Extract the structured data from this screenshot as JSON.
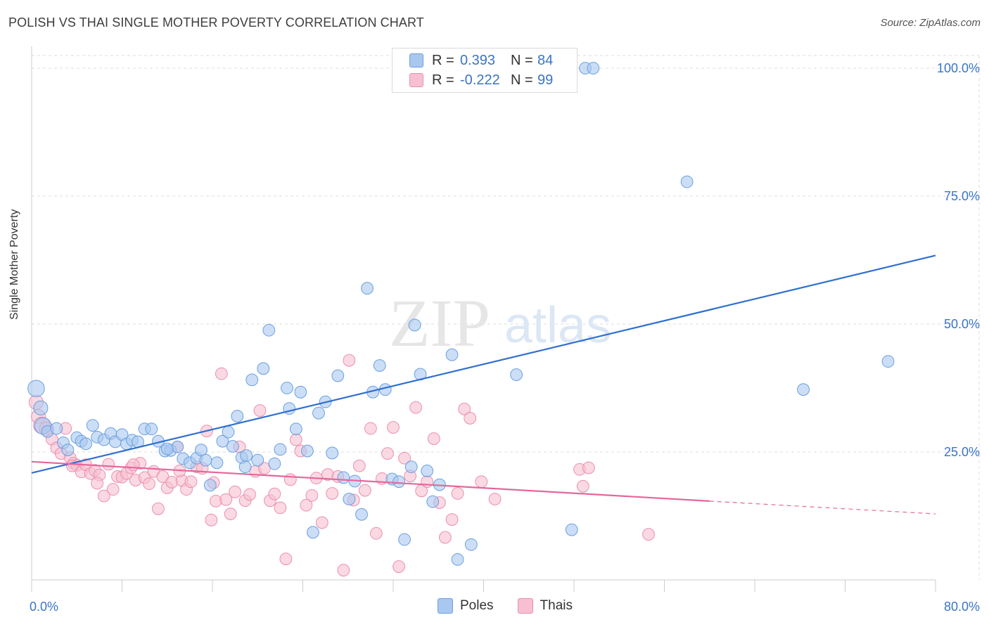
{
  "title": "POLISH VS THAI SINGLE MOTHER POVERTY CORRELATION CHART",
  "source": "Source: ZipAtlas.com",
  "watermark": {
    "zip": "ZIP",
    "atlas": "atlas"
  },
  "colors": {
    "poles_fill": "#a9c8f0",
    "poles_stroke": "#6b9fe0",
    "poles_line": "#2f6fcf",
    "thais_fill": "#f7bfd1",
    "thais_stroke": "#ec8fae",
    "thais_line": "#e5679a",
    "axis_text": "#3a74c8",
    "grid": "#dddddd"
  },
  "legend_top": {
    "rows": [
      {
        "key": "R =",
        "r": "0.393",
        "nkey": "N =",
        "n": "84"
      },
      {
        "key": "R =",
        "r": "-0.222",
        "nkey": "N =",
        "n": "99"
      }
    ]
  },
  "legend_bottom": [
    "Poles",
    "Thais"
  ],
  "chart_data": {
    "type": "scatter",
    "title": "POLISH VS THAI SINGLE MOTHER POVERTY CORRELATION CHART",
    "xlabel": "",
    "ylabel": "Single Mother Poverty",
    "xlim": [
      0,
      80
    ],
    "ylim": [
      0,
      100
    ],
    "x_tick_labels": [
      "0.0%",
      "80.0%"
    ],
    "y_tick_labels": [
      "25.0%",
      "50.0%",
      "75.0%",
      "100.0%"
    ],
    "y_ticks": [
      25,
      50,
      75,
      100
    ],
    "grid": true,
    "legend_position": "bottom-center",
    "series": [
      {
        "name": "Poles",
        "trend": {
          "x": [
            0,
            80
          ],
          "y": [
            20.9,
            63.4
          ],
          "style": "solid"
        },
        "points": [
          [
            0.4,
            37.4,
            14
          ],
          [
            0.8,
            33.6,
            12
          ],
          [
            1.0,
            30.1,
            14
          ],
          [
            1.4,
            29.0,
            10
          ],
          [
            2.2,
            29.6,
            10
          ],
          [
            2.8,
            26.8,
            10
          ],
          [
            3.2,
            25.4,
            10
          ],
          [
            4.0,
            27.8,
            10
          ],
          [
            4.4,
            27.1,
            10
          ],
          [
            4.8,
            26.6,
            10
          ],
          [
            5.4,
            30.2,
            10
          ],
          [
            5.8,
            27.9,
            10
          ],
          [
            6.4,
            27.4,
            10
          ],
          [
            7.0,
            28.6,
            10
          ],
          [
            7.4,
            27.0,
            10
          ],
          [
            8.0,
            28.4,
            10
          ],
          [
            8.4,
            26.6,
            10
          ],
          [
            8.9,
            27.3,
            10
          ],
          [
            9.4,
            27.0,
            10
          ],
          [
            10.0,
            29.5,
            10
          ],
          [
            10.6,
            29.5,
            10
          ],
          [
            11.2,
            27.1,
            10
          ],
          [
            11.8,
            25.2,
            10
          ],
          [
            12.3,
            25.3,
            10
          ],
          [
            12.9,
            26.0,
            10
          ],
          [
            13.4,
            23.7,
            10
          ],
          [
            14.0,
            22.9,
            10
          ],
          [
            14.6,
            23.8,
            10
          ],
          [
            15.0,
            25.4,
            10
          ],
          [
            15.4,
            23.4,
            10
          ],
          [
            15.8,
            18.5,
            10
          ],
          [
            16.4,
            22.9,
            10
          ],
          [
            16.9,
            27.1,
            10
          ],
          [
            17.4,
            28.9,
            10
          ],
          [
            17.8,
            26.1,
            10
          ],
          [
            18.2,
            32.0,
            10
          ],
          [
            18.6,
            23.9,
            10
          ],
          [
            19.0,
            24.3,
            10
          ],
          [
            19.5,
            39.1,
            10
          ],
          [
            20.0,
            23.4,
            10
          ],
          [
            20.5,
            41.3,
            10
          ],
          [
            21.0,
            48.8,
            10
          ],
          [
            21.5,
            22.7,
            10
          ],
          [
            22.0,
            25.5,
            10
          ],
          [
            22.8,
            33.5,
            10
          ],
          [
            23.4,
            29.5,
            10
          ],
          [
            23.8,
            36.7,
            10
          ],
          [
            24.4,
            25.2,
            10
          ],
          [
            24.9,
            9.3,
            10
          ],
          [
            25.4,
            32.6,
            10
          ],
          [
            26.0,
            34.8,
            10
          ],
          [
            26.6,
            24.8,
            10
          ],
          [
            27.1,
            39.9,
            10
          ],
          [
            27.6,
            20.0,
            10
          ],
          [
            28.1,
            15.8,
            10
          ],
          [
            28.6,
            19.3,
            10
          ],
          [
            29.2,
            12.8,
            10
          ],
          [
            29.7,
            57.0,
            10
          ],
          [
            30.2,
            36.7,
            10
          ],
          [
            30.8,
            41.9,
            10
          ],
          [
            31.3,
            37.2,
            10
          ],
          [
            31.9,
            19.7,
            10
          ],
          [
            32.5,
            19.2,
            10
          ],
          [
            33.0,
            7.9,
            10
          ],
          [
            33.6,
            22.1,
            10
          ],
          [
            33.9,
            49.8,
            10
          ],
          [
            34.4,
            40.2,
            10
          ],
          [
            35.0,
            21.3,
            10
          ],
          [
            35.5,
            15.3,
            10
          ],
          [
            37.2,
            44.0,
            10
          ],
          [
            37.7,
            4.0,
            10
          ],
          [
            38.9,
            6.9,
            10
          ],
          [
            40.0,
            99.8,
            10
          ],
          [
            42.9,
            40.1,
            10
          ],
          [
            47.8,
            9.8,
            10
          ],
          [
            49.0,
            100.0,
            10
          ],
          [
            49.7,
            100.0,
            10
          ],
          [
            58.0,
            77.8,
            10
          ],
          [
            68.3,
            37.2,
            10
          ],
          [
            75.8,
            42.7,
            10
          ],
          [
            22.6,
            37.5,
            10
          ],
          [
            18.9,
            22.1,
            10
          ],
          [
            36.1,
            18.6,
            10
          ],
          [
            12.0,
            25.6,
            10
          ]
        ]
      },
      {
        "name": "Thais",
        "trend": {
          "x": [
            0,
            60,
            80
          ],
          "y": [
            23.1,
            15.4,
            12.9
          ],
          "style": "solid-then-dashed",
          "solid_until": 60
        },
        "points": [
          [
            0.4,
            34.7,
            12
          ],
          [
            0.6,
            31.9,
            12
          ],
          [
            0.9,
            30.2,
            14
          ],
          [
            1.3,
            29.5,
            12
          ],
          [
            1.8,
            27.5,
            10
          ],
          [
            2.2,
            25.8,
            10
          ],
          [
            2.6,
            24.7,
            10
          ],
          [
            3.0,
            29.6,
            10
          ],
          [
            3.4,
            23.9,
            10
          ],
          [
            3.7,
            22.8,
            10
          ],
          [
            4.0,
            22.4,
            10
          ],
          [
            4.4,
            21.1,
            10
          ],
          [
            4.8,
            22.5,
            10
          ],
          [
            5.2,
            20.8,
            10
          ],
          [
            5.6,
            21.4,
            10
          ],
          [
            6.0,
            20.5,
            10
          ],
          [
            6.4,
            16.4,
            10
          ],
          [
            6.8,
            22.6,
            10
          ],
          [
            7.2,
            17.7,
            10
          ],
          [
            7.6,
            20.2,
            10
          ],
          [
            8.0,
            20.1,
            10
          ],
          [
            8.4,
            20.8,
            10
          ],
          [
            8.8,
            21.9,
            10
          ],
          [
            9.2,
            19.5,
            10
          ],
          [
            9.6,
            22.8,
            10
          ],
          [
            10.0,
            20.0,
            10
          ],
          [
            10.4,
            18.8,
            10
          ],
          [
            10.8,
            21.2,
            10
          ],
          [
            11.2,
            13.9,
            10
          ],
          [
            11.6,
            20.2,
            10
          ],
          [
            12.0,
            18.0,
            10
          ],
          [
            12.4,
            19.1,
            10
          ],
          [
            12.9,
            26.0,
            10
          ],
          [
            13.3,
            19.4,
            10
          ],
          [
            13.7,
            17.7,
            10
          ],
          [
            14.1,
            19.2,
            10
          ],
          [
            14.6,
            22.1,
            10
          ],
          [
            15.1,
            21.8,
            10
          ],
          [
            15.5,
            29.1,
            10
          ],
          [
            15.9,
            11.7,
            10
          ],
          [
            16.3,
            15.4,
            10
          ],
          [
            16.8,
            40.3,
            10
          ],
          [
            17.2,
            15.7,
            10
          ],
          [
            17.6,
            12.9,
            10
          ],
          [
            18.0,
            17.2,
            10
          ],
          [
            18.4,
            26.0,
            10
          ],
          [
            18.9,
            15.5,
            10
          ],
          [
            19.3,
            16.7,
            10
          ],
          [
            19.8,
            21.2,
            10
          ],
          [
            20.2,
            33.1,
            10
          ],
          [
            20.6,
            21.8,
            10
          ],
          [
            21.1,
            15.5,
            10
          ],
          [
            21.5,
            16.8,
            10
          ],
          [
            22.0,
            14.1,
            10
          ],
          [
            22.5,
            4.1,
            10
          ],
          [
            22.9,
            19.6,
            10
          ],
          [
            23.4,
            27.4,
            10
          ],
          [
            23.8,
            25.2,
            10
          ],
          [
            24.3,
            14.6,
            10
          ],
          [
            24.8,
            16.5,
            10
          ],
          [
            25.2,
            19.9,
            10
          ],
          [
            25.7,
            11.2,
            10
          ],
          [
            26.2,
            20.6,
            10
          ],
          [
            26.6,
            16.9,
            10
          ],
          [
            27.1,
            20.2,
            10
          ],
          [
            27.6,
            1.9,
            10
          ],
          [
            28.1,
            42.9,
            10
          ],
          [
            28.5,
            15.6,
            10
          ],
          [
            29.0,
            22.3,
            10
          ],
          [
            29.5,
            17.5,
            10
          ],
          [
            30.0,
            29.6,
            10
          ],
          [
            30.5,
            9.1,
            10
          ],
          [
            31.0,
            19.8,
            10
          ],
          [
            31.5,
            24.7,
            10
          ],
          [
            32.0,
            29.8,
            10
          ],
          [
            32.5,
            2.6,
            10
          ],
          [
            33.0,
            23.8,
            10
          ],
          [
            33.5,
            20.3,
            10
          ],
          [
            34.0,
            33.7,
            10
          ],
          [
            34.5,
            17.4,
            10
          ],
          [
            35.0,
            19.2,
            10
          ],
          [
            35.6,
            27.6,
            10
          ],
          [
            36.1,
            15.1,
            10
          ],
          [
            36.6,
            8.3,
            10
          ],
          [
            37.2,
            11.8,
            10
          ],
          [
            37.7,
            16.9,
            10
          ],
          [
            38.3,
            33.4,
            10
          ],
          [
            38.8,
            31.6,
            10
          ],
          [
            39.8,
            19.2,
            10
          ],
          [
            41.0,
            15.8,
            10
          ],
          [
            48.5,
            21.6,
            10
          ],
          [
            48.8,
            18.3,
            10
          ],
          [
            49.3,
            21.9,
            10
          ],
          [
            54.6,
            8.9,
            10
          ],
          [
            3.6,
            22.3,
            10
          ],
          [
            5.8,
            18.9,
            10
          ],
          [
            9.0,
            22.5,
            10
          ],
          [
            13.1,
            21.3,
            10
          ],
          [
            16.1,
            19.0,
            10
          ]
        ]
      }
    ]
  }
}
